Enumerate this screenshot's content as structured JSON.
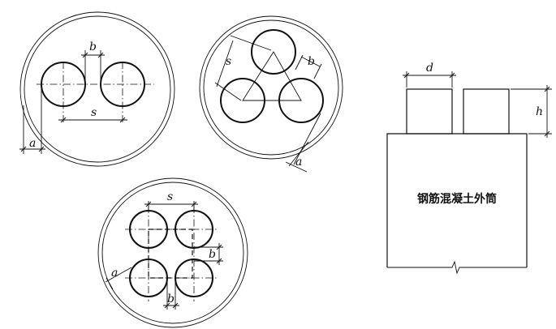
{
  "labels": {
    "b": "b",
    "s": "s",
    "a": "a",
    "d": "d",
    "h": "h"
  },
  "outer_tube_label": "钢筋混凝土外筒"
}
